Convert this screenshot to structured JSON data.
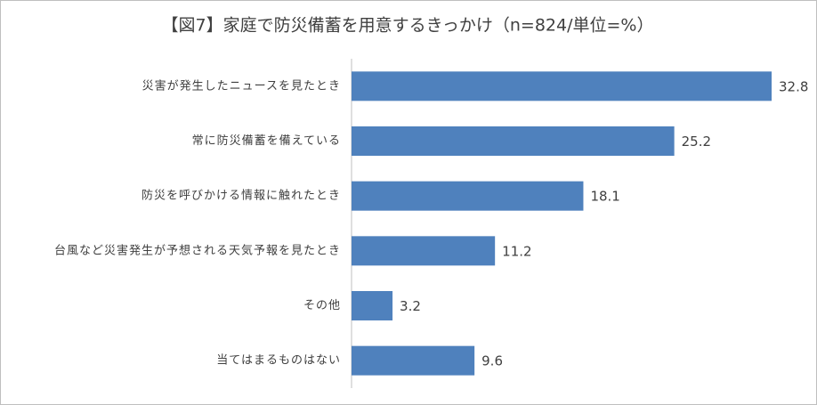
{
  "chart_data": {
    "type": "bar",
    "orientation": "horizontal",
    "title": "【図7】家庭で防災備蓄を用意するきっかけ（n=824/単位=%）",
    "categories": [
      "災害が発生したニュースを見たとき",
      "常に防災備蓄を備えている",
      "防災を呼びかける情報に触れたとき",
      "台風など災害発生が予想される天気予報を見たとき",
      "その他",
      "当てはまるものはない"
    ],
    "values": [
      32.8,
      25.2,
      18.1,
      11.2,
      3.2,
      9.6
    ],
    "color": "#4f81bd"
  }
}
